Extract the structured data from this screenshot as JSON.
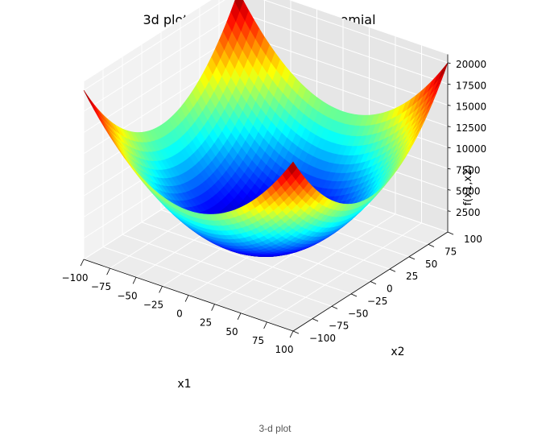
{
  "caption": "3-d plot",
  "chart_data": {
    "type": "surface",
    "title": "3d plot of a two-variable polynomial",
    "xlabel": "x1",
    "ylabel": "x2",
    "zlabel": "f(x1,x2)",
    "x_ticks": [
      -100,
      -75,
      -50,
      -25,
      0,
      25,
      50,
      75,
      100
    ],
    "y_ticks": [
      -100,
      -75,
      -50,
      -25,
      0,
      25,
      50,
      75,
      100
    ],
    "z_ticks": [
      2500,
      5000,
      7500,
      10000,
      12500,
      15000,
      17500,
      20000
    ],
    "xlim": [
      -100,
      100
    ],
    "ylim": [
      -100,
      100
    ],
    "zlim": [
      0,
      21000
    ],
    "function": "x1^2 + x2^2",
    "colormap": "jet",
    "colormap_stops": [
      "#00007f",
      "#0000ff",
      "#007fff",
      "#00ffff",
      "#7fff7f",
      "#ffff00",
      "#ff7f00",
      "#ff0000",
      "#7f0000"
    ],
    "grid": true,
    "z_max_value": 20000
  }
}
